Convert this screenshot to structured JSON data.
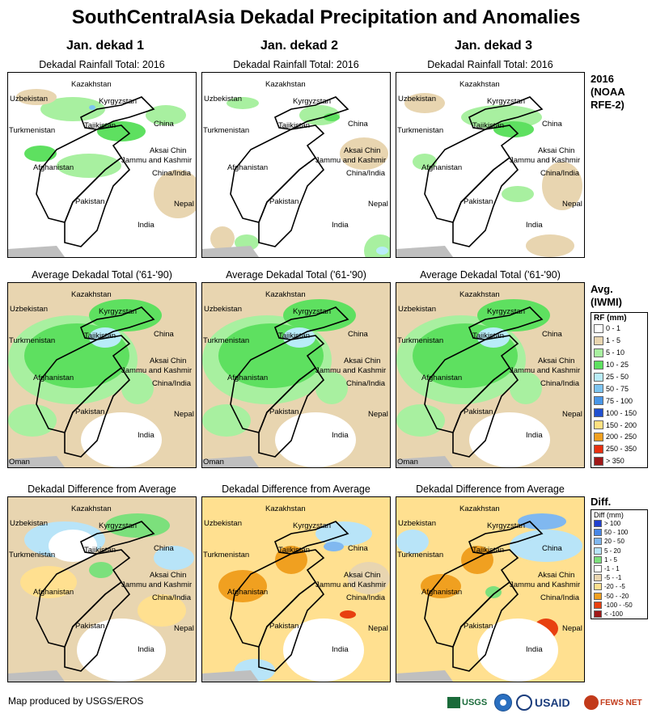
{
  "title": "SouthCentralAsia Dekadal Precipitation and Anomalies",
  "columns": [
    "Jan. dekad 1",
    "Jan. dekad 2",
    "Jan. dekad 3"
  ],
  "row_titles": {
    "rainfall": "Dekadal Rainfall Total: 2016",
    "average": "Average Dekadal Total ('61-'90)",
    "difference": "Dekadal Difference from Average"
  },
  "side_labels": {
    "rainfall": [
      "2016",
      "(NOAA",
      "RFE-2)"
    ],
    "average": [
      "Avg.",
      "(IWMI)"
    ],
    "difference": "Diff."
  },
  "map_labels": {
    "kazakhstan": "Kazakhstan",
    "uzbekistan": "Uzbekistan",
    "kyrgyzstan": "Kyrgyzstan",
    "turkmenistan": "Turkmenistan",
    "tajikistan": "Tajikistan",
    "china": "China",
    "aksai_chin": "Aksai Chin",
    "jammu": "Jammu and Kashmir",
    "afghanistan": "Afghanistan",
    "china_india": "China/India",
    "pakistan": "Pakistan",
    "nepal": "Nepal",
    "india": "India",
    "oman": "Oman"
  },
  "rf_legend": {
    "title": "RF (mm)",
    "items": [
      {
        "label": "0 - 1",
        "color": "#ffffff"
      },
      {
        "label": "1 - 5",
        "color": "#e8d5b0"
      },
      {
        "label": "5 - 10",
        "color": "#a8f0a0"
      },
      {
        "label": "10 - 25",
        "color": "#5ee060"
      },
      {
        "label": "25 - 50",
        "color": "#b8ecf8"
      },
      {
        "label": "50 - 75",
        "color": "#7cc4f0"
      },
      {
        "label": "75 - 100",
        "color": "#4896e8"
      },
      {
        "label": "100 - 150",
        "color": "#2050d0"
      },
      {
        "label": "150 - 200",
        "color": "#ffe080"
      },
      {
        "label": "200 - 250",
        "color": "#f0a020"
      },
      {
        "label": "250 - 350",
        "color": "#e83010"
      },
      {
        "label": "> 350",
        "color": "#a01818"
      }
    ]
  },
  "diff_legend": {
    "title": "Diff (mm)",
    "items": [
      {
        "label": "> 100",
        "color": "#2040d0"
      },
      {
        "label": "50 - 100",
        "color": "#4888e8"
      },
      {
        "label": "20 - 50",
        "color": "#80b8f0"
      },
      {
        "label": "5 - 20",
        "color": "#b8e4f8"
      },
      {
        "label": "1 - 5",
        "color": "#7ce07c"
      },
      {
        "label": "-1 - 1",
        "color": "#ffffff"
      },
      {
        "label": "-5 - -1",
        "color": "#e8d5b0"
      },
      {
        "label": "-20 - -5",
        "color": "#ffe090"
      },
      {
        "label": "-50 - -20",
        "color": "#f0a020"
      },
      {
        "label": "-100 - -50",
        "color": "#e84010"
      },
      {
        "label": "< -100",
        "color": "#a01818"
      }
    ]
  },
  "footer": {
    "credit": "Map produced by USGS/EROS",
    "logos": [
      "USGS",
      "USAID",
      "FEWS NET"
    ]
  }
}
